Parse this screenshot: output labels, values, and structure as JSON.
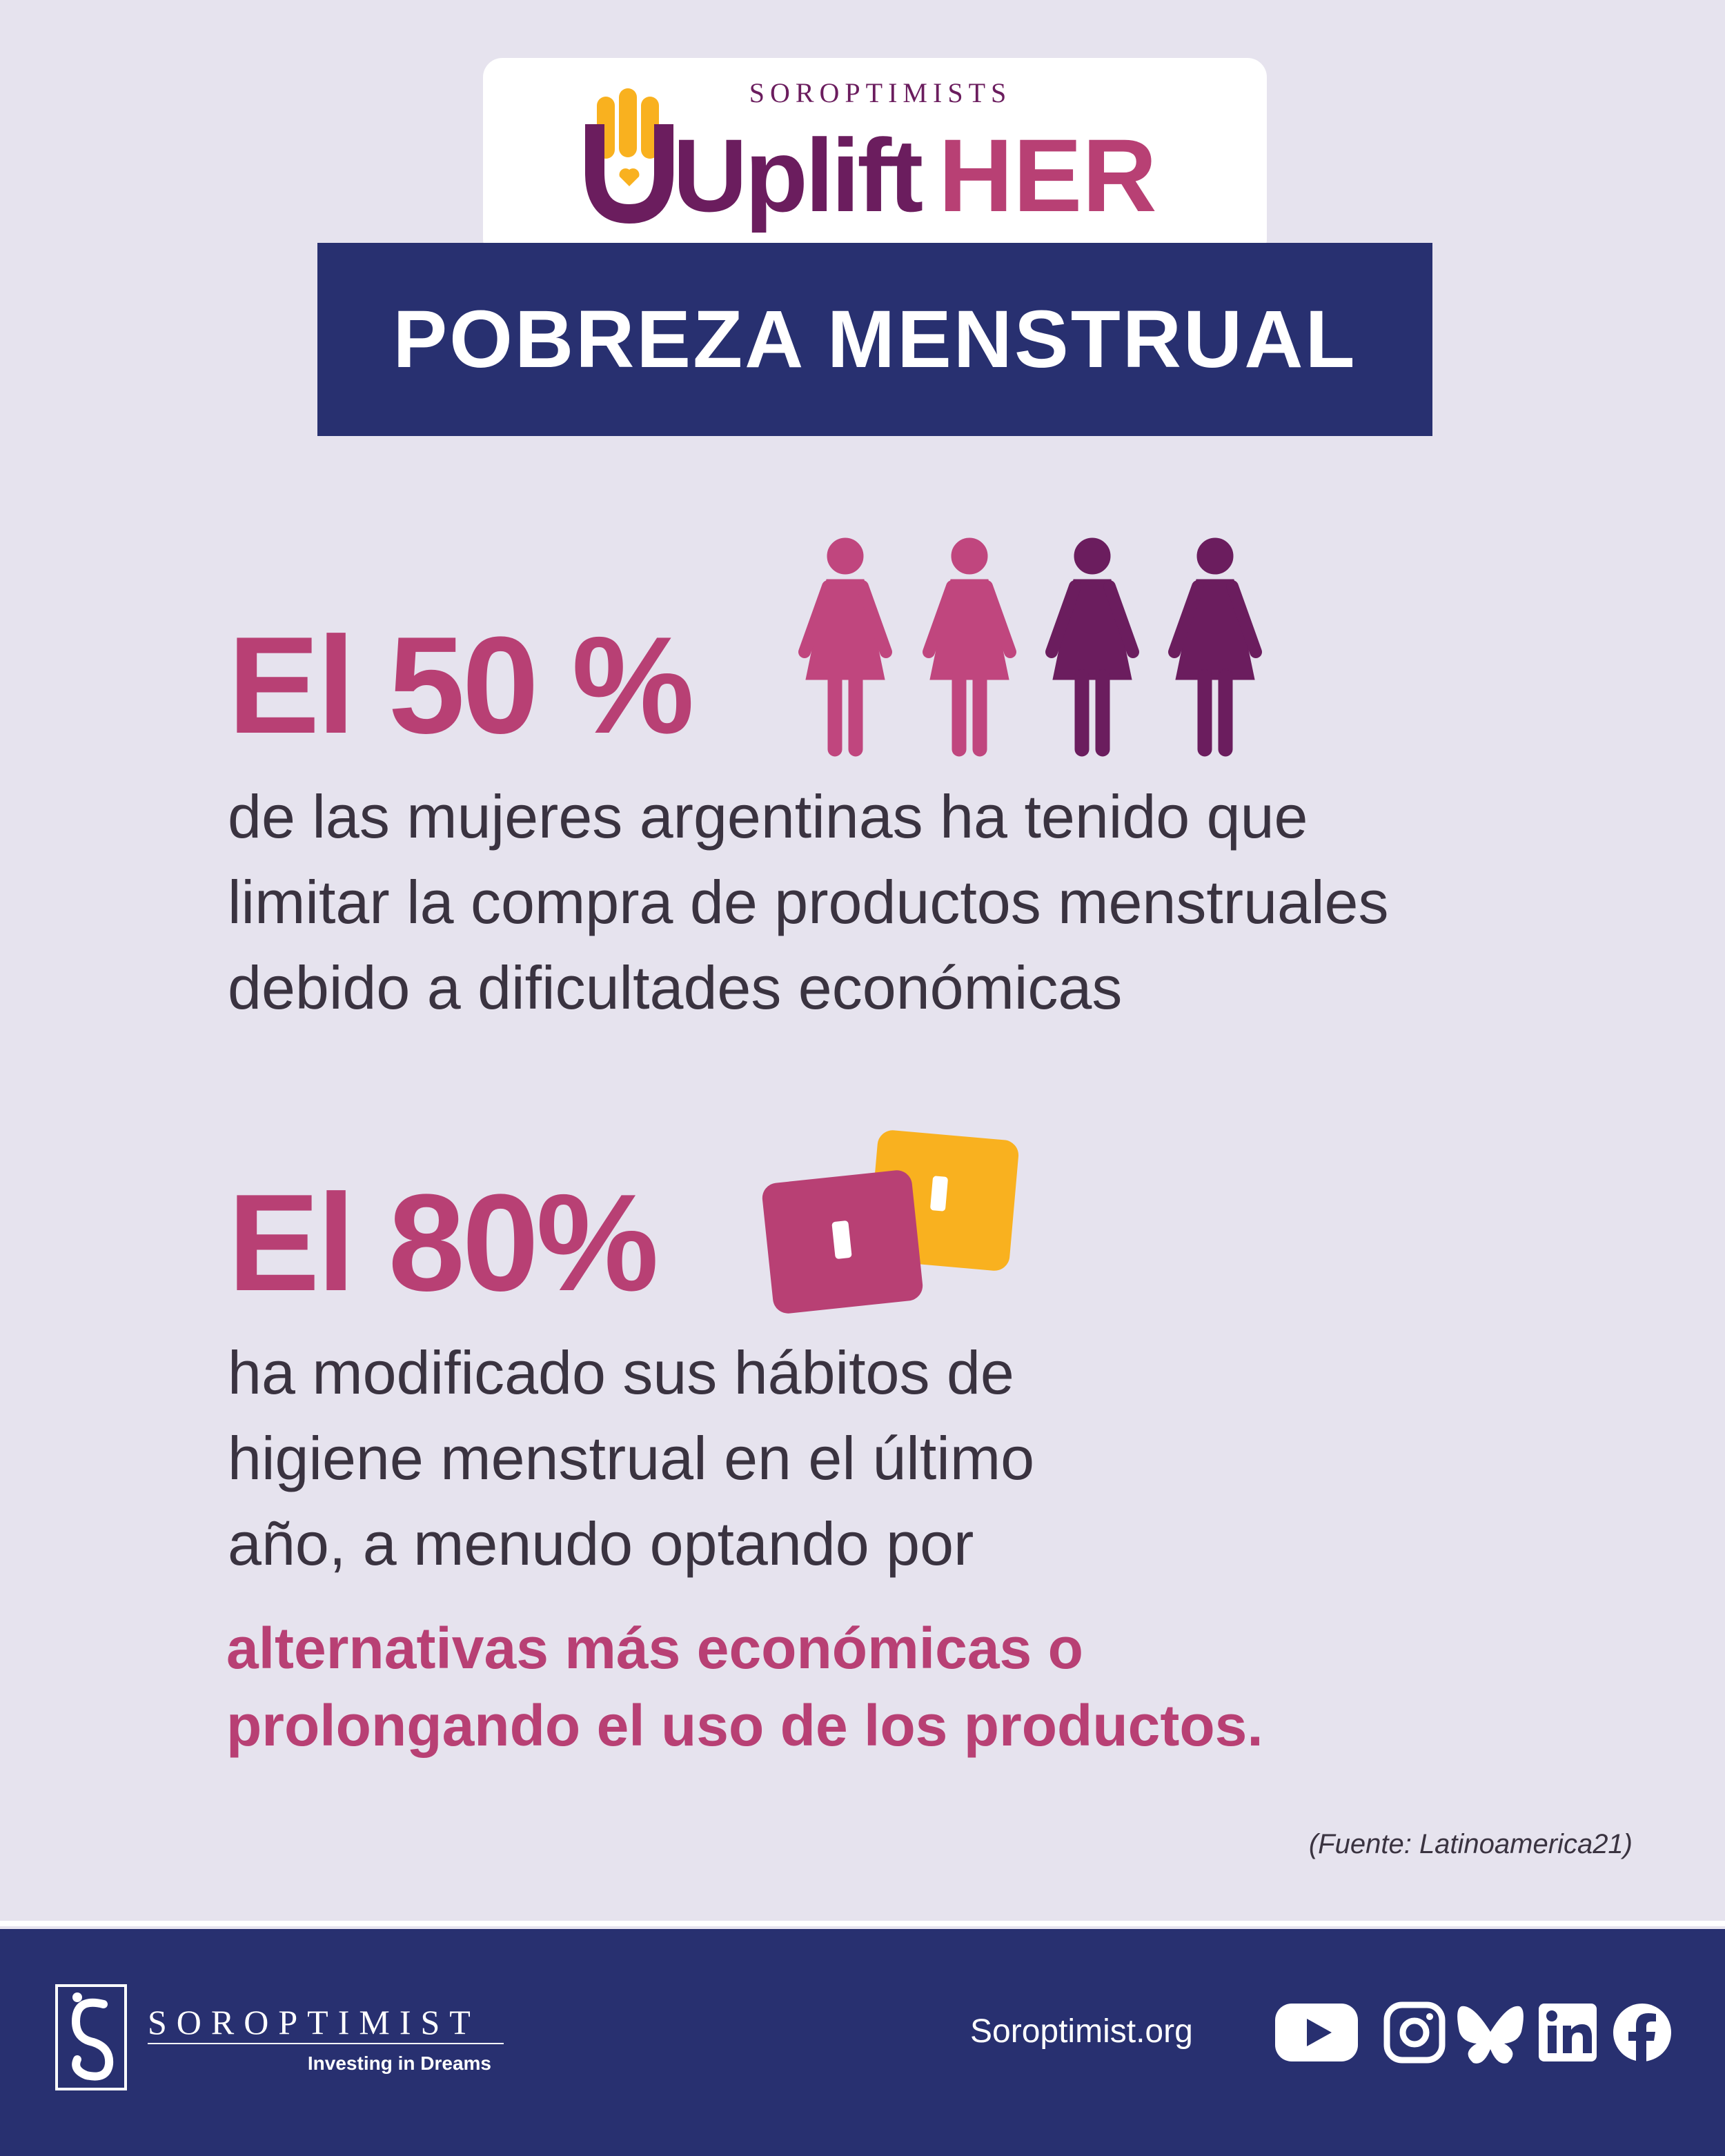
{
  "header": {
    "brand_small": "SOROPTIMISTS",
    "logo_text": "Uplift",
    "logo_accent": "HER",
    "title": "POBREZA MENSTRUAL"
  },
  "stats": [
    {
      "headline": "El 50 %",
      "lines": [
        "de las mujeres argentinas ha tenido que",
        "limitar la compra de productos menstruales",
        "debido a dificultades económicas"
      ]
    },
    {
      "headline": "El 80%",
      "lines": [
        "ha modificado sus hábitos de",
        "higiene menstrual en el último",
        "año, a menudo optando por"
      ],
      "highlight": [
        "alternativas más económicas o",
        "prolongando el uso de los productos."
      ]
    }
  ],
  "source": "(Fuente: Latinoamerica21)",
  "footer": {
    "org": "SOROPTIMIST",
    "tagline": "Investing in Dreams",
    "website": "Soroptimist.org"
  }
}
